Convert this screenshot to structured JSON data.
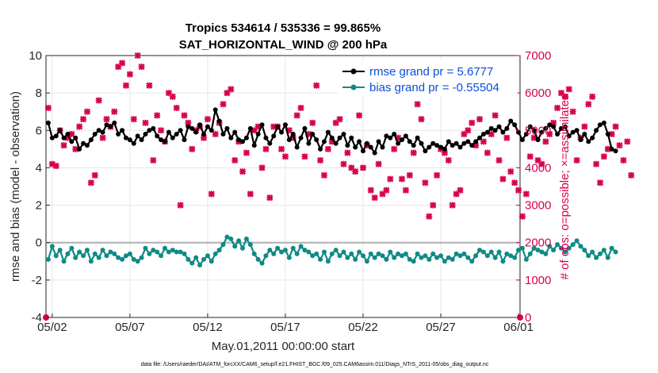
{
  "chart_data": {
    "type": "line",
    "title_line1": "Tropics 534614 / 535336 = 99.865%",
    "title_line2": "SAT_HORIZONTAL_WIND @ 200 hPa",
    "xlabel": "May.01,2011 00:00:00 start",
    "ylabel_left": "rmse and bias (model - observation)",
    "ylabel_right": "# of obs: o=possible; ×=assimilated",
    "footnote": "data file: /Users/raeder/DAI/ATM_forcXX/CAM6_setup/f.e21.FHIST_BGC.f09_025.CAM6assim.011/Diags_NTrS_2011-05/obs_diag_output.nc",
    "x_ticks": [
      "05/02",
      "05/07",
      "05/12",
      "05/17",
      "05/22",
      "05/27",
      "06/01"
    ],
    "x_tick_days": [
      1,
      6,
      11,
      16,
      21,
      26,
      31
    ],
    "xlim_days": [
      0.6,
      31.1
    ],
    "ylim_left": [
      -4,
      10
    ],
    "y_ticks_left": [
      "-4",
      "-2",
      "0",
      "2",
      "4",
      "6",
      "8",
      "10"
    ],
    "ylim_right": [
      0,
      7000
    ],
    "y_ticks_right": [
      "0",
      "1000",
      "2000",
      "3000",
      "4000",
      "5000",
      "6000",
      "7000"
    ],
    "grid": true,
    "legend_position": "top-right",
    "colors": {
      "rmse": "#000000",
      "bias": "#0f8a85",
      "obs": "#d6004f",
      "legend_text": "#0b4fd6",
      "zero_line": "#b0b0b0"
    },
    "series": [
      {
        "name": "rmse grand pr = 5.6777",
        "axis": "left",
        "start_day": 0.75,
        "step_days": 0.25,
        "values": [
          6.4,
          5.6,
          5.7,
          6.0,
          5.6,
          5.8,
          5.4,
          5.6,
          5.0,
          5.3,
          5.2,
          5.5,
          5.8,
          6.0,
          5.9,
          6.3,
          6.2,
          6.4,
          5.8,
          6.0,
          5.6,
          5.5,
          5.3,
          5.7,
          5.5,
          5.8,
          6.0,
          6.1,
          5.7,
          5.5,
          5.4,
          5.9,
          5.6,
          5.8,
          6.0,
          5.5,
          6.2,
          6.1,
          5.9,
          6.3,
          5.8,
          6.2,
          6.0,
          7.1,
          6.5,
          5.8,
          6.1,
          5.6,
          5.9,
          5.5,
          5.4,
          5.6,
          6.1,
          5.2,
          5.8,
          6.3,
          5.6,
          5.3,
          5.7,
          6.2,
          5.9,
          6.3,
          5.5,
          5.8,
          5.1,
          5.6,
          6.1,
          5.3,
          5.8,
          5.5,
          5.0,
          5.4,
          5.9,
          5.6,
          5.3,
          5.6,
          5.8,
          5.2,
          5.6,
          5.1,
          5.4,
          4.9,
          5.3,
          5.1,
          4.8,
          5.4,
          5.1,
          5.7,
          5.6,
          5.8,
          5.3,
          5.5,
          5.7,
          5.4,
          5.2,
          5.6,
          5.3,
          4.9,
          5.1,
          5.3,
          5.2,
          5.1,
          5.0,
          5.4,
          5.2,
          5.3,
          5.1,
          5.3,
          5.4,
          5.2,
          5.4,
          5.6,
          5.8,
          5.9,
          6.1,
          6.0,
          6.2,
          5.9,
          6.1,
          6.5,
          6.3,
          5.9,
          5.5,
          5.8,
          6.2,
          6.0,
          5.5,
          5.9,
          6.1,
          6.3,
          6.2,
          5.8,
          6.1,
          6.2,
          5.7,
          5.9,
          6.0,
          5.5,
          5.8,
          5.4,
          5.6,
          6.0,
          6.3,
          6.4,
          5.8,
          5.0,
          4.9
        ]
      },
      {
        "name": "bias grand pr = -0.55504",
        "axis": "left",
        "start_day": 0.75,
        "step_days": 0.25,
        "values": [
          -0.9,
          -0.2,
          -0.7,
          -0.4,
          -1.0,
          -0.6,
          -0.3,
          -0.8,
          -0.5,
          -0.7,
          -0.4,
          -1.0,
          -0.6,
          -0.8,
          -0.4,
          -0.7,
          -0.5,
          -0.6,
          -0.8,
          -0.9,
          -0.7,
          -0.6,
          -0.9,
          -1.0,
          -0.8,
          -0.3,
          -0.6,
          -0.4,
          -0.5,
          -0.7,
          -0.3,
          -0.5,
          -0.4,
          -0.5,
          -0.5,
          -0.6,
          -0.9,
          -1.1,
          -0.8,
          -1.2,
          -0.9,
          -0.7,
          -1.0,
          -0.6,
          -0.4,
          -0.1,
          0.3,
          0.2,
          -0.2,
          0.1,
          -0.3,
          0.2,
          -0.1,
          -0.6,
          -0.9,
          -1.1,
          -0.7,
          -0.4,
          -0.6,
          -0.3,
          -0.5,
          -0.4,
          -0.8,
          -0.3,
          -0.6,
          -0.2,
          -0.4,
          -0.5,
          -0.7,
          -0.6,
          -0.9,
          -0.5,
          -1.0,
          -0.6,
          -0.4,
          -0.7,
          -0.5,
          -0.8,
          -0.6,
          -0.9,
          -0.5,
          -0.7,
          -1.0,
          -0.6,
          -0.8,
          -0.6,
          -0.7,
          -0.9,
          -0.5,
          -0.8,
          -0.6,
          -0.7,
          -0.6,
          -0.9,
          -1.0,
          -0.6,
          -0.8,
          -0.7,
          -0.9,
          -0.6,
          -0.8,
          -0.7,
          -1.0,
          -0.8,
          -0.9,
          -0.6,
          -0.7,
          -0.6,
          -0.8,
          -1.0,
          -0.7,
          -0.4,
          -0.5,
          -0.7,
          -0.5,
          -0.8,
          -0.5,
          -1.0,
          -0.6,
          -0.7,
          -0.8,
          -0.4,
          -0.3,
          -0.9,
          -0.6,
          -0.3,
          -0.4,
          -0.5,
          -0.6,
          -0.2,
          -0.4,
          -0.1,
          -0.3,
          -0.5,
          -0.3,
          -0.1,
          0.1,
          -0.2,
          -0.4,
          -0.7,
          -0.5,
          -0.8,
          -0.6,
          -0.4,
          -0.8,
          -0.3,
          -0.5
        ]
      }
    ],
    "obs_series": {
      "name": "# of obs assimilated",
      "axis": "right",
      "marker": "x",
      "start_day": 0.75,
      "step_days": 0.25,
      "values": [
        5600,
        4100,
        4050,
        5000,
        4600,
        4800,
        4900,
        4500,
        5100,
        5300,
        5500,
        3600,
        3800,
        5800,
        4800,
        5300,
        5100,
        5500,
        6700,
        6800,
        6200,
        6500,
        5300,
        7000,
        6700,
        5200,
        6200,
        4200,
        5400,
        5000,
        4700,
        6000,
        5900,
        5600,
        3000,
        5400,
        5200,
        4500,
        5000,
        5100,
        4800,
        5300,
        3300,
        4900,
        5200,
        5700,
        6000,
        6100,
        4200,
        4700,
        3900,
        4400,
        3300,
        5000,
        5100,
        4000,
        4500,
        3200,
        5100,
        5100,
        4500,
        4300,
        5000,
        4800,
        5400,
        5600,
        4300,
        4900,
        5200,
        6200,
        4200,
        3800,
        4500,
        4700,
        5200,
        5300,
        4100,
        4400,
        4000,
        3900,
        5400,
        4000,
        4600,
        3400,
        3200,
        4100,
        3300,
        3400,
        3700,
        4500,
        4800,
        3700,
        3400,
        3800,
        4400,
        5700,
        5300,
        3600,
        2700,
        3000,
        3800,
        4500,
        4400,
        4200,
        3000,
        3300,
        3400,
        4900,
        5000,
        5200,
        4600,
        5300,
        4700,
        4400,
        4900,
        5400,
        4200,
        3700,
        4800,
        3900,
        3600,
        3400,
        2700,
        3300,
        4300,
        4800,
        4200,
        4100,
        4700,
        4900,
        5200,
        5600,
        6000,
        5900,
        6100,
        5500,
        4200,
        4800,
        5100,
        5700,
        5900,
        4100,
        3600,
        4300,
        4500,
        4900,
        5100,
        4600,
        4200,
        4700,
        3800
      ]
    },
    "obs_possible_markers": {
      "name": "# of obs possible",
      "axis": "right",
      "marker": "o",
      "days": [
        0.6,
        31.1
      ],
      "values": [
        0,
        0
      ]
    }
  }
}
